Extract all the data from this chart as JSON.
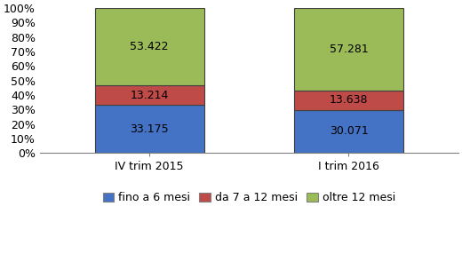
{
  "categories": [
    "IV trim 2015",
    "I trim 2016"
  ],
  "series": [
    {
      "label": "fino a 6 mesi",
      "values": [
        33175,
        30071
      ],
      "color": "#4472C4"
    },
    {
      "label": "da 7 a 12 mesi",
      "values": [
        13214,
        13638
      ],
      "color": "#BE4B48"
    },
    {
      "label": "oltre 12 mesi",
      "values": [
        53422,
        57281
      ],
      "color": "#9BBB59"
    }
  ],
  "bar_labels": [
    [
      "33.175",
      "13.214",
      "53.422"
    ],
    [
      "30.071",
      "13.638",
      "57.281"
    ]
  ],
  "ylim": [
    0,
    1.0
  ],
  "yticks": [
    0.0,
    0.1,
    0.2,
    0.3,
    0.4,
    0.5,
    0.6,
    0.7,
    0.8,
    0.9,
    1.0
  ],
  "ytick_labels": [
    "0%",
    "10%",
    "20%",
    "30%",
    "40%",
    "50%",
    "60%",
    "70%",
    "80%",
    "90%",
    "100%"
  ],
  "background_color": "#FFFFFF",
  "bar_width": 0.55,
  "label_fontsize": 9,
  "legend_fontsize": 9,
  "tick_fontsize": 9,
  "bar_edge_color": "#404040",
  "bar_edge_width": 0.8,
  "spine_color": "#808080",
  "xlim": [
    -0.55,
    1.55
  ]
}
